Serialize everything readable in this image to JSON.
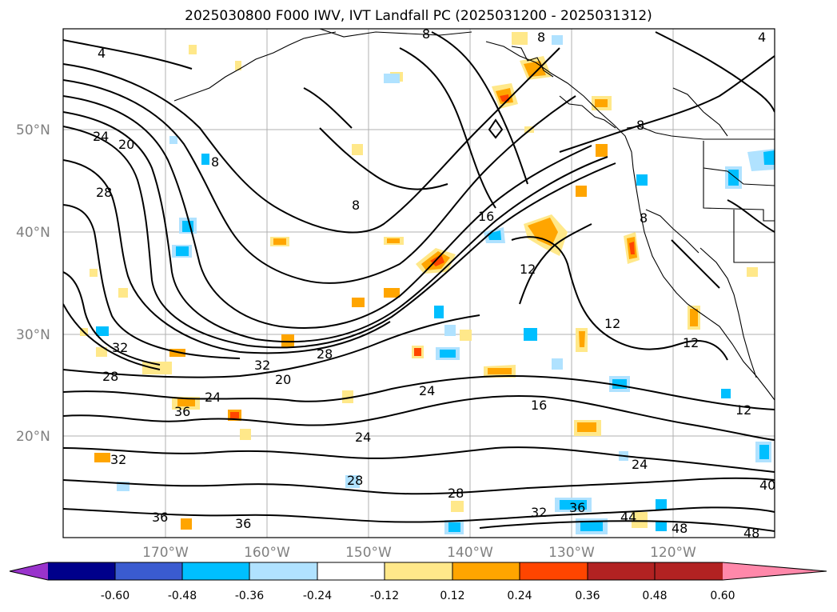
{
  "title": "2025030800 F000 IWV, IVT Landfall PC (2025031200 - 2025031312)",
  "lat_labels": [
    "50°N",
    "40°N",
    "30°N",
    "20°N"
  ],
  "lon_labels": [
    "170°W",
    "160°W",
    "150°W",
    "140°W",
    "130°W",
    "120°W"
  ],
  "colorbar": {
    "tick_labels": [
      "-0.60",
      "-0.48",
      "-0.36",
      "-0.24",
      "-0.12",
      "0.12",
      "0.24",
      "0.36",
      "0.48",
      "0.60"
    ],
    "colors": [
      "#9933cc",
      "#00008b",
      "#3a5bd0",
      "#00bfff",
      "#b0e2ff",
      "#ffffff",
      "#ffe88a",
      "#ffa500",
      "#ff4500",
      "#b22222",
      "#ff88aa"
    ]
  },
  "contour_labels": {
    "c4a": "4",
    "c4b": "4",
    "c8a": "8",
    "c8b": "8",
    "c8c": "8",
    "c8d": "8",
    "c8e": "8",
    "c8f": "8",
    "c12a": "12",
    "c12b": "12",
    "c12c": "12",
    "c12d": "12",
    "c16a": "16",
    "c16b": "16",
    "c20a": "20",
    "c20b": "20",
    "c24a": "24",
    "c24b": "24",
    "c24c": "24",
    "c24d": "24",
    "c24e": "24",
    "c28a": "28",
    "c28b": "28",
    "c28c": "28",
    "c28d": "28",
    "c28e": "28",
    "c32a": "32",
    "c32b": "32",
    "c32c": "32",
    "c32d": "32",
    "c36a": "36",
    "c36b": "36",
    "c36c": "36",
    "c36d": "36",
    "c40": "40",
    "c44": "44",
    "c48a": "48",
    "c48b": "48"
  }
}
